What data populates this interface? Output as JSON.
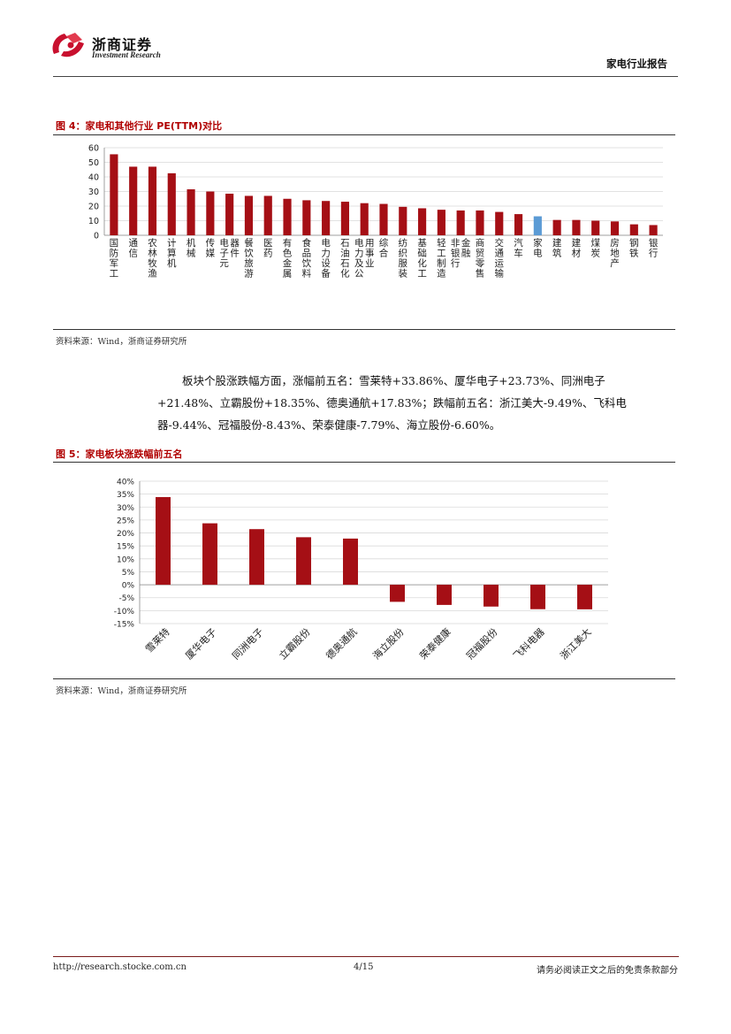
{
  "header": {
    "brand_name": "浙商证券",
    "brand_en": "Investment Research",
    "report_type": "家电行业报告"
  },
  "figure4": {
    "title": "图 4：家电和其他行业 PE(TTM)对比",
    "source": "资料来源：Wind，浙商证券研究所"
  },
  "paragraph": {
    "line1": "板块个股涨跌幅方面，涨幅前五名：雪莱特+33.86%、厦华电子+23.73%、同洲电子",
    "line2": "+21.48%、立霸股份+18.35%、德奥通航+17.83%；跌幅前五名：浙江美大-9.49%、飞科电",
    "line3": "器-9.44%、冠福股份-8.43%、荣泰健康-7.79%、海立股份-6.60%。"
  },
  "figure5": {
    "title": "图 5：家电板块涨跌幅前五名",
    "source": "资料来源：Wind，浙商证券研究所"
  },
  "footer": {
    "url": "http://research.stocke.com.cn",
    "page": "4/15",
    "note": "请务必阅读正文之后的免责条款部分"
  },
  "colors": {
    "bar": "#a50f15",
    "highlight": "#5b9bd5",
    "title_red": "#b00000"
  },
  "chart_data": [
    {
      "type": "bar",
      "categories": [
        "国防军工",
        "通信",
        "农林牧渔",
        "计算机",
        "机械",
        "传媒",
        "电子元器件",
        "餐饮旅游",
        "医药",
        "有色金属",
        "食品饮料",
        "电力设备",
        "石油石化",
        "电力及公用事业",
        "综合",
        "纺织服装",
        "基础化工",
        "轻工制造",
        "非银行金融",
        "商贸零售",
        "交通运输",
        "汽车",
        "家电",
        "建筑",
        "建材",
        "煤炭",
        "房地产",
        "钢铁",
        "银行"
      ],
      "values": [
        55.5,
        47,
        47,
        42.5,
        31.5,
        30,
        28.5,
        27,
        27,
        25,
        24,
        23.5,
        23,
        22,
        21.5,
        19.5,
        18.5,
        17.5,
        17,
        17,
        16,
        14.5,
        13,
        10.5,
        10.5,
        10,
        9.5,
        7.5,
        7
      ],
      "highlight_category": "家电",
      "title": "",
      "xlabel": "",
      "ylabel": "",
      "ylim": [
        0,
        60
      ],
      "yticks": [
        0,
        10,
        20,
        30,
        40,
        50,
        60
      ],
      "grid": true
    },
    {
      "type": "bar",
      "categories": [
        "雪莱特",
        "厦华电子",
        "同洲电子",
        "立霸股份",
        "德奥通航",
        "海立股份",
        "荣泰健康",
        "冠福股份",
        "飞科电器",
        "浙江美大"
      ],
      "values": [
        33.86,
        23.73,
        21.48,
        18.35,
        17.83,
        -6.6,
        -7.79,
        -8.43,
        -9.44,
        -9.49
      ],
      "title": "",
      "xlabel": "",
      "ylabel": "",
      "ylim": [
        -15,
        40
      ],
      "yticks": [
        "-15%",
        "-10%",
        "-5%",
        "0%",
        "5%",
        "10%",
        "15%",
        "20%",
        "25%",
        "30%",
        "35%",
        "40%"
      ],
      "grid": true
    }
  ]
}
